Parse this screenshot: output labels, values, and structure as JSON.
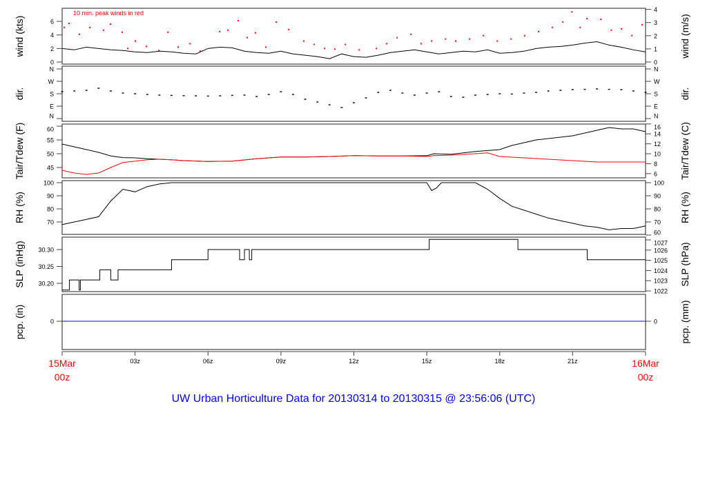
{
  "chart_data": [
    {
      "type": "line",
      "panel": "wind",
      "ylabel_left": "wind (kts)",
      "ylabel_right": "wind (m/s)",
      "annotation": "10 min. peak winds in red",
      "xlim_hours": [
        0,
        24
      ],
      "ylim": [
        -0.2,
        7.9
      ],
      "yticks_left": [
        0,
        2,
        4,
        6
      ],
      "yticks_right": [
        0,
        1,
        2,
        3,
        4
      ],
      "series": [
        {
          "name": "mean wind (kts)",
          "color": "#000000",
          "x": [
            0,
            0.5,
            1,
            1.5,
            2,
            2.5,
            3,
            3.5,
            4,
            4.5,
            5,
            5.5,
            6,
            6.5,
            7,
            7.5,
            8,
            8.5,
            9,
            9.5,
            10,
            10.5,
            11,
            11.5,
            12,
            12.5,
            13,
            13.5,
            14,
            14.5,
            15,
            15.5,
            16,
            16.5,
            17,
            17.5,
            18,
            18.5,
            19,
            19.5,
            20,
            20.5,
            21,
            21.5,
            22,
            22.5,
            23,
            23.5,
            24
          ],
          "y": [
            2.0,
            1.8,
            2.2,
            2.0,
            1.8,
            1.7,
            1.5,
            1.4,
            1.6,
            1.5,
            1.3,
            1.2,
            2.0,
            2.2,
            2.1,
            1.6,
            1.4,
            1.3,
            1.6,
            1.2,
            1.0,
            0.8,
            0.5,
            1.2,
            0.8,
            0.7,
            1.0,
            1.4,
            1.6,
            1.8,
            1.5,
            1.2,
            1.4,
            1.6,
            1.5,
            1.8,
            1.3,
            1.4,
            1.6,
            2.0,
            2.2,
            2.3,
            2.5,
            2.8,
            3.0,
            2.5,
            2.2,
            1.8,
            1.5
          ]
        },
        {
          "name": "10 min. peak winds (kts)",
          "color": "#ff0000",
          "x": [
            0.09,
            0.28,
            0.71,
            1.14,
            1.7,
            1.99,
            2.47,
            2.7,
            3.01,
            3.47,
            3.98,
            4.35,
            4.77,
            5.26,
            5.68,
            6.48,
            6.82,
            7.24,
            7.61,
            7.95,
            8.38,
            8.81,
            9.32,
            9.94,
            10.37,
            10.8,
            11.22,
            11.65,
            12.22,
            12.93,
            13.35,
            13.78,
            14.35,
            14.77,
            15.2,
            15.77,
            16.19,
            16.76,
            17.33,
            17.9,
            18.47,
            19.03,
            19.6,
            20.17,
            20.6,
            20.97,
            21.31,
            21.59,
            22.16,
            22.59,
            23.01,
            23.44,
            23.86
          ],
          "y": [
            5.1,
            5.7,
            4.1,
            5.1,
            4.7,
            5.6,
            4.4,
            2.0,
            3.1,
            2.3,
            1.7,
            4.4,
            2.2,
            2.7,
            1.6,
            4.5,
            4.7,
            6.1,
            3.6,
            4.3,
            2.2,
            5.9,
            4.8,
            3.1,
            2.6,
            2.0,
            1.9,
            2.6,
            1.8,
            2.0,
            2.7,
            3.6,
            4.1,
            2.7,
            3.1,
            3.4,
            3.1,
            3.4,
            3.9,
            3.1,
            3.4,
            3.9,
            4.5,
            5.1,
            5.9,
            7.4,
            5.1,
            6.4,
            6.3,
            4.7,
            4.9,
            3.9,
            5.5
          ]
        }
      ]
    },
    {
      "type": "scatter",
      "panel": "direction",
      "ylabel_left": "dir.",
      "ylabel_right": "dir.",
      "ylim_degrees": [
        0,
        360
      ],
      "yticks": [
        "N",
        "E",
        "S",
        "W",
        "N"
      ],
      "series": [
        {
          "name": "wind direction (deg)",
          "color": "#000000",
          "x": [
            0,
            0.5,
            1,
            1.5,
            2,
            2.5,
            3,
            3.5,
            4,
            4.5,
            5,
            5.5,
            6,
            6.5,
            7,
            7.5,
            8,
            8.5,
            9,
            9.5,
            10,
            10.5,
            11,
            11.5,
            12,
            12.5,
            13,
            13.5,
            14,
            14.5,
            15,
            15.5,
            16,
            16.5,
            17,
            17.5,
            18,
            18.5,
            19,
            19.5,
            20,
            20.5,
            21,
            21.5,
            22,
            22.5,
            23,
            23.5,
            24
          ],
          "y": [
            195,
            200,
            205,
            220,
            200,
            185,
            180,
            175,
            170,
            168,
            166,
            165,
            163,
            165,
            168,
            170,
            160,
            175,
            195,
            175,
            140,
            120,
            100,
            80,
            115,
            150,
            190,
            205,
            185,
            170,
            185,
            195,
            160,
            155,
            170,
            175,
            180,
            178,
            185,
            190,
            200,
            205,
            210,
            212,
            215,
            212,
            210,
            200,
            190
          ]
        }
      ]
    },
    {
      "type": "line",
      "panel": "temperature",
      "ylabel_left": "Tair/Tdew (F)",
      "ylabel_right": "Tair/Tdew (C)",
      "ylim": [
        41.3,
        60.8
      ],
      "yticks_left": [
        45,
        50,
        55,
        60
      ],
      "yticks_right": [
        6,
        8,
        10,
        12,
        14,
        16
      ],
      "series": [
        {
          "name": "Tair (F)",
          "color": "#000000",
          "x": [
            0,
            0.5,
            1,
            1.5,
            2,
            2.5,
            3,
            3.5,
            4,
            4.5,
            5,
            6,
            7,
            8,
            9,
            10,
            11,
            12,
            13,
            14,
            15,
            15.3,
            16,
            17,
            18,
            18.5,
            19,
            19.5,
            20,
            20.5,
            21,
            21.5,
            22,
            22.5,
            23,
            23.5,
            24
          ],
          "y": [
            53.5,
            52.5,
            51.5,
            50.5,
            49.2,
            48.6,
            48.5,
            48.2,
            48.0,
            47.8,
            47.5,
            47.2,
            47.3,
            48.2,
            48.8,
            48.8,
            49.0,
            49.3,
            49.2,
            49.2,
            49.3,
            50.0,
            49.8,
            50.8,
            51.5,
            53.0,
            54.0,
            55.0,
            55.5,
            56.0,
            56.5,
            57.5,
            58.5,
            59.5,
            59.0,
            59.0,
            58.0
          ]
        },
        {
          "name": "Tdew (F)",
          "color": "#ff0000",
          "x": [
            0,
            0.5,
            1,
            1.5,
            2,
            2.5,
            3,
            3.5,
            4,
            4.5,
            5,
            6,
            7,
            8,
            9,
            10,
            11,
            12,
            13,
            14,
            15,
            15.3,
            16,
            17,
            17.5,
            18,
            19,
            20,
            21,
            22,
            23,
            24
          ],
          "y": [
            44.0,
            43.0,
            42.5,
            43.0,
            45.0,
            46.8,
            47.3,
            47.8,
            48.0,
            47.8,
            47.5,
            47.2,
            47.3,
            48.2,
            48.8,
            48.8,
            49.0,
            49.3,
            49.2,
            49.2,
            49.0,
            49.3,
            49.5,
            50.0,
            50.3,
            49.0,
            48.5,
            48.0,
            47.5,
            47.0,
            47.0,
            47.0
          ]
        }
      ]
    },
    {
      "type": "line",
      "panel": "relative_humidity",
      "ylabel_left": "RH (%)",
      "ylabel_right": "RH (%)",
      "ylim": [
        60,
        101.5
      ],
      "yticks_left": [
        70,
        80,
        90,
        100
      ],
      "yticks_right": [
        60,
        70,
        80,
        90,
        100
      ],
      "series": [
        {
          "name": "RH (%)",
          "color": "#000000",
          "x": [
            0,
            0.5,
            1,
            1.5,
            2,
            2.5,
            3,
            3.5,
            4,
            4.5,
            15,
            15.2,
            15.4,
            15.6,
            17,
            17.5,
            18,
            18.5,
            19,
            19.5,
            20,
            20.5,
            21,
            21.5,
            22,
            22.5,
            23,
            23.5,
            24
          ],
          "y": [
            68,
            70,
            72,
            74,
            86,
            95,
            93,
            97,
            99,
            100,
            100,
            94,
            96,
            100,
            100,
            95,
            88,
            82,
            79,
            76,
            73,
            71,
            69,
            67,
            66,
            64,
            65,
            65,
            67
          ]
        }
      ]
    },
    {
      "type": "line",
      "panel": "sea_level_pressure",
      "ylabel_left": "SLP (inHg)",
      "ylabel_right": "SLP (hPa)",
      "ylim": [
        30.17,
        30.34
      ],
      "yticks_left": [
        "30.20",
        "30.25",
        "30.30"
      ],
      "yticks_right": [
        1022,
        1023,
        1024,
        1025,
        1026,
        1027
      ],
      "step": true,
      "series": [
        {
          "name": "SLP (inHg)",
          "color": "#000000",
          "x": [
            0,
            0.3,
            0.7,
            0.75,
            1.55,
            2.0,
            2.3,
            4.5,
            6.0,
            7.3,
            7.5,
            7.7,
            7.8,
            15.1,
            18.75,
            21.6,
            24
          ],
          "y": [
            30.18,
            30.21,
            30.18,
            30.21,
            30.24,
            30.21,
            30.24,
            30.27,
            30.3,
            30.27,
            30.3,
            30.27,
            30.3,
            30.33,
            30.3,
            30.27,
            30.27
          ]
        }
      ]
    },
    {
      "type": "line",
      "panel": "precipitation",
      "ylabel_left": "pcp. (in)",
      "ylabel_right": "pcp. (mm)",
      "yticks_left": [
        0
      ],
      "yticks_right": [
        0
      ],
      "series": [
        {
          "name": "precipitation (in)",
          "color": "#0000ff",
          "x": [
            0,
            24
          ],
          "y": [
            0,
            0
          ]
        }
      ]
    }
  ],
  "x_axis": {
    "ticks": [
      "03z",
      "06z",
      "09z",
      "12z",
      "15z",
      "18z",
      "21z"
    ],
    "start_label": [
      "15Mar",
      "00z"
    ],
    "end_label": [
      "16Mar",
      "00z"
    ],
    "end_color": "#ff0000"
  },
  "title": "UW Urban Horticulture Data for 20130314  to  20130315 @ 23:56:06  (UTC)",
  "title_color": "#0000ff"
}
